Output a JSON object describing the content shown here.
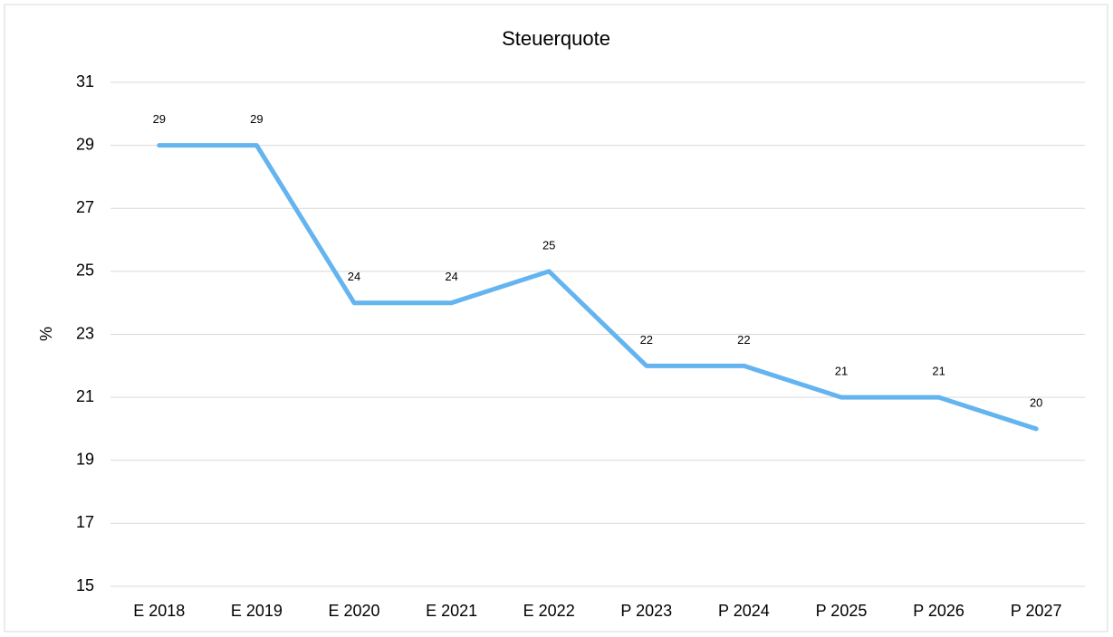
{
  "chart_data": {
    "type": "line",
    "title": "Steuerquote",
    "y_label": "%",
    "categories": [
      "E 2018",
      "E 2019",
      "E 2020",
      "E 2021",
      "E 2022",
      "P 2023",
      "P 2024",
      "P 2025",
      "P 2026",
      "P 2027"
    ],
    "series": [
      {
        "name": "Steuerquote",
        "color": "#64b4f0",
        "values": [
          29,
          29,
          24,
          24,
          25,
          22,
          22,
          21,
          21,
          20
        ]
      }
    ],
    "ylim": [
      15,
      31
    ],
    "yticks": [
      15,
      17,
      19,
      21,
      23,
      25,
      27,
      29,
      31
    ],
    "grid": true,
    "data_labels": true
  }
}
